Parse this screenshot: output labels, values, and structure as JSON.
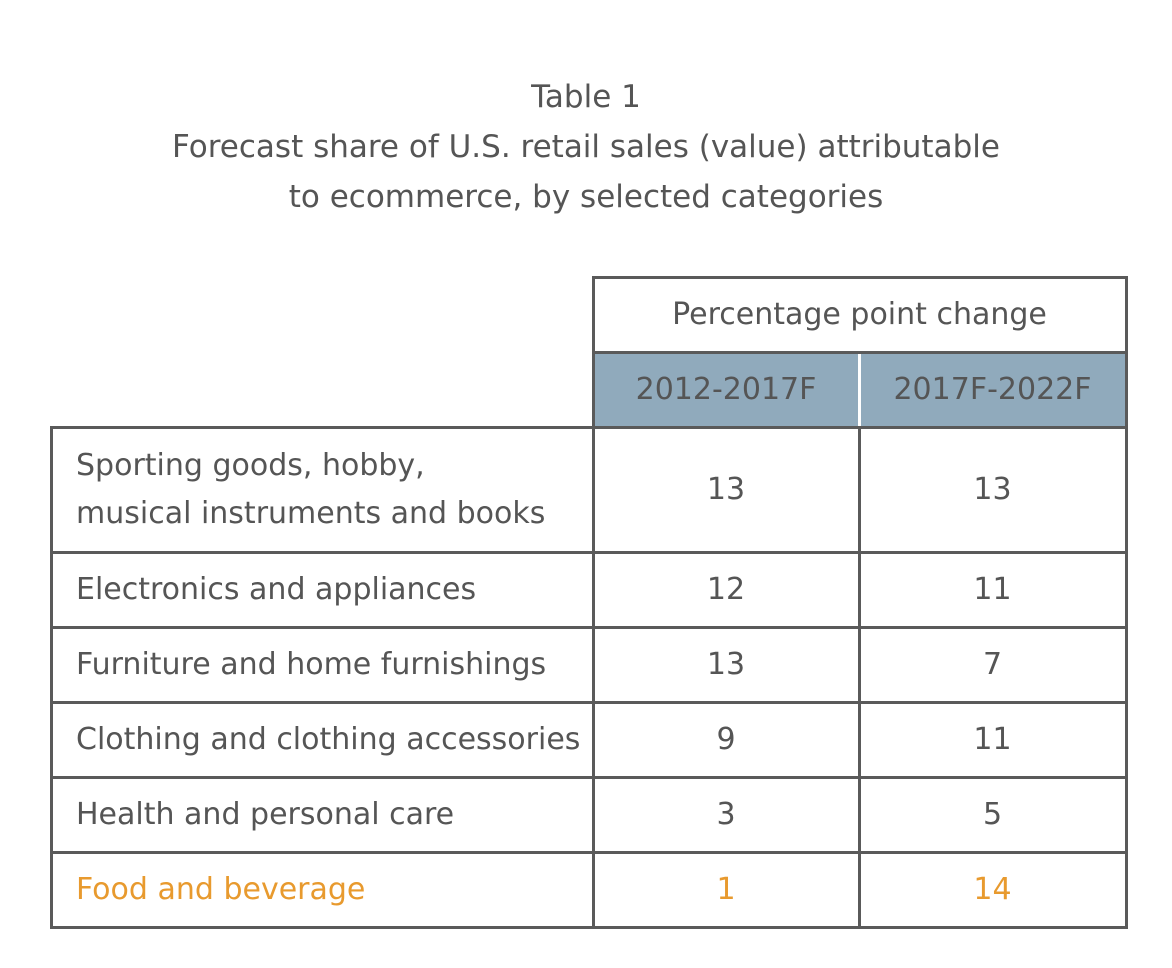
{
  "title": {
    "line1": "Table 1",
    "line2": "Forecast share of U.S. retail sales (value) attributable",
    "line3": "to ecommerce, by selected categories"
  },
  "chart_data": {
    "type": "table",
    "title": "Table 1 Forecast share of U.S. retail sales (value) attributable to ecommerce, by selected categories",
    "group_header": "Percentage point change",
    "columns": [
      "2012-2017F",
      "2017F-2022F"
    ],
    "rows": [
      {
        "label_lines": [
          "Sporting goods, hobby,",
          "musical instruments and books"
        ],
        "values": [
          "13",
          "13"
        ]
      },
      {
        "label_lines": [
          "Electronics and appliances"
        ],
        "values": [
          "12",
          "11"
        ]
      },
      {
        "label_lines": [
          "Furniture and home furnishings"
        ],
        "values": [
          "13",
          "7"
        ]
      },
      {
        "label_lines": [
          "Clothing and clothing accessories"
        ],
        "values": [
          "9",
          "11"
        ]
      },
      {
        "label_lines": [
          "Health and personal care"
        ],
        "values": [
          "3",
          "5"
        ]
      },
      {
        "label_lines": [
          "Food and beverage"
        ],
        "values": [
          "1",
          "14"
        ],
        "highlighted": true
      }
    ],
    "header_fill_color": "#90aabc",
    "highlight_color": "#e89a2e"
  }
}
